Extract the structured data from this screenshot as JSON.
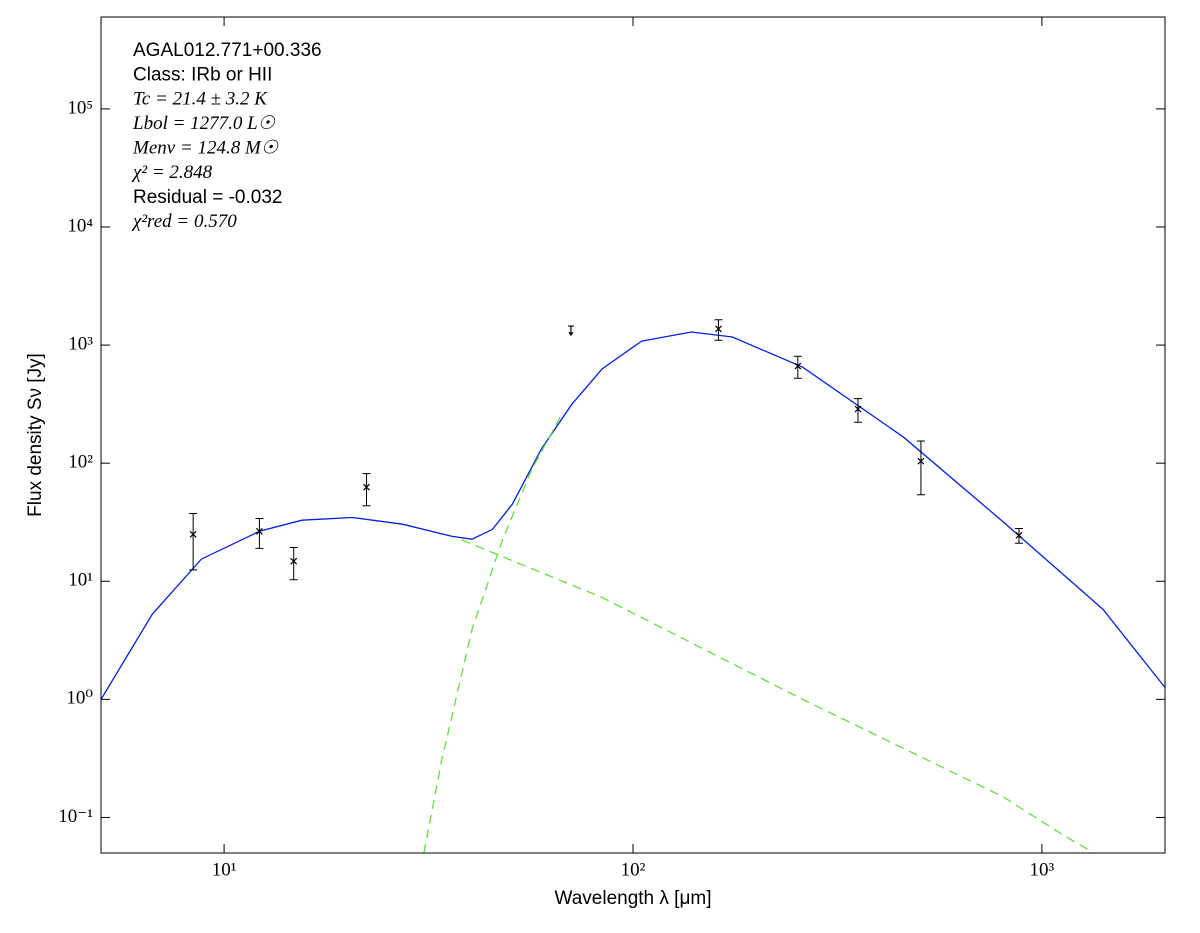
{
  "chart_data": {
    "type": "sed",
    "xlabel": "Wavelength λ [μm]",
    "ylabel": "Flux density Sν [Jy]",
    "annotations": [
      "AGAL012.771+00.336",
      "Class: IRb or HII",
      "Tc = 21.4 ± 3.2 K",
      "Lbol = 1277.0 L☉",
      "Menv = 124.8 M☉",
      "χ² = 2.848",
      "Residual = -0.032",
      "χ²red = 0.570"
    ],
    "log_x": true,
    "log_y": true,
    "xlim": [
      5,
      2000
    ],
    "ylim": [
      0.05,
      600000
    ],
    "xticks": [
      {
        "value": 10,
        "label": "10¹"
      },
      {
        "value": 100,
        "label": "10²"
      },
      {
        "value": 1000,
        "label": "10³"
      }
    ],
    "yticks": [
      {
        "value": 0.1,
        "label": "10⁻¹"
      },
      {
        "value": 1,
        "label": "10⁰"
      },
      {
        "value": 10,
        "label": "10¹"
      },
      {
        "value": 100,
        "label": "10²"
      },
      {
        "value": 1000,
        "label": "10³"
      },
      {
        "value": 10000,
        "label": "10⁴"
      },
      {
        "value": 100000,
        "label": "10⁵"
      }
    ],
    "series": [
      {
        "color": "#0022dd",
        "style": "solid",
        "x": [
          5,
          6.67,
          8.8,
          12.2,
          15.5,
          20.6,
          27.3,
          36.1,
          40.4,
          45.3,
          50.7,
          59.7,
          70.9,
          84.1,
          105,
          139,
          175,
          260,
          459,
          803,
          1410,
          2000
        ],
        "values": [
          1.0,
          5.25,
          15.4,
          26.5,
          32.9,
          34.7,
          30.4,
          24,
          22.7,
          27.5,
          45,
          132,
          316,
          630,
          1080,
          1290,
          1170,
          650,
          166,
          32,
          5.8,
          1.26
        ]
      },
      {
        "color": "#66dd44",
        "style": "dashed",
        "x": [
          38.1,
          84,
          260,
          803,
          1120,
          1340
        ],
        "values": [
          22.4,
          7.3,
          1.0,
          0.15,
          0.072,
          0.05
        ]
      },
      {
        "color": "#66dd44",
        "style": "dashed",
        "x": [
          30.8,
          34.1,
          40.4,
          48,
          56.6,
          67
        ],
        "values": [
          0.05,
          0.31,
          3.9,
          22.7,
          89,
          260
        ]
      }
    ],
    "points": {
      "color": "#000000",
      "x": [
        8.4,
        12.2,
        14.8,
        22.3,
        161.8,
        253,
        355,
        506,
        879
      ],
      "values": [
        25,
        26.5,
        14.8,
        62.6,
        1370,
        664,
        287,
        104,
        24.5
      ],
      "errors": [
        12.5,
        7.5,
        4.5,
        19,
        270,
        140,
        65,
        50,
        3.5
      ]
    },
    "upper_limits": {
      "color": "#000000",
      "x": [
        70.5
      ],
      "values": [
        1340
      ]
    }
  }
}
